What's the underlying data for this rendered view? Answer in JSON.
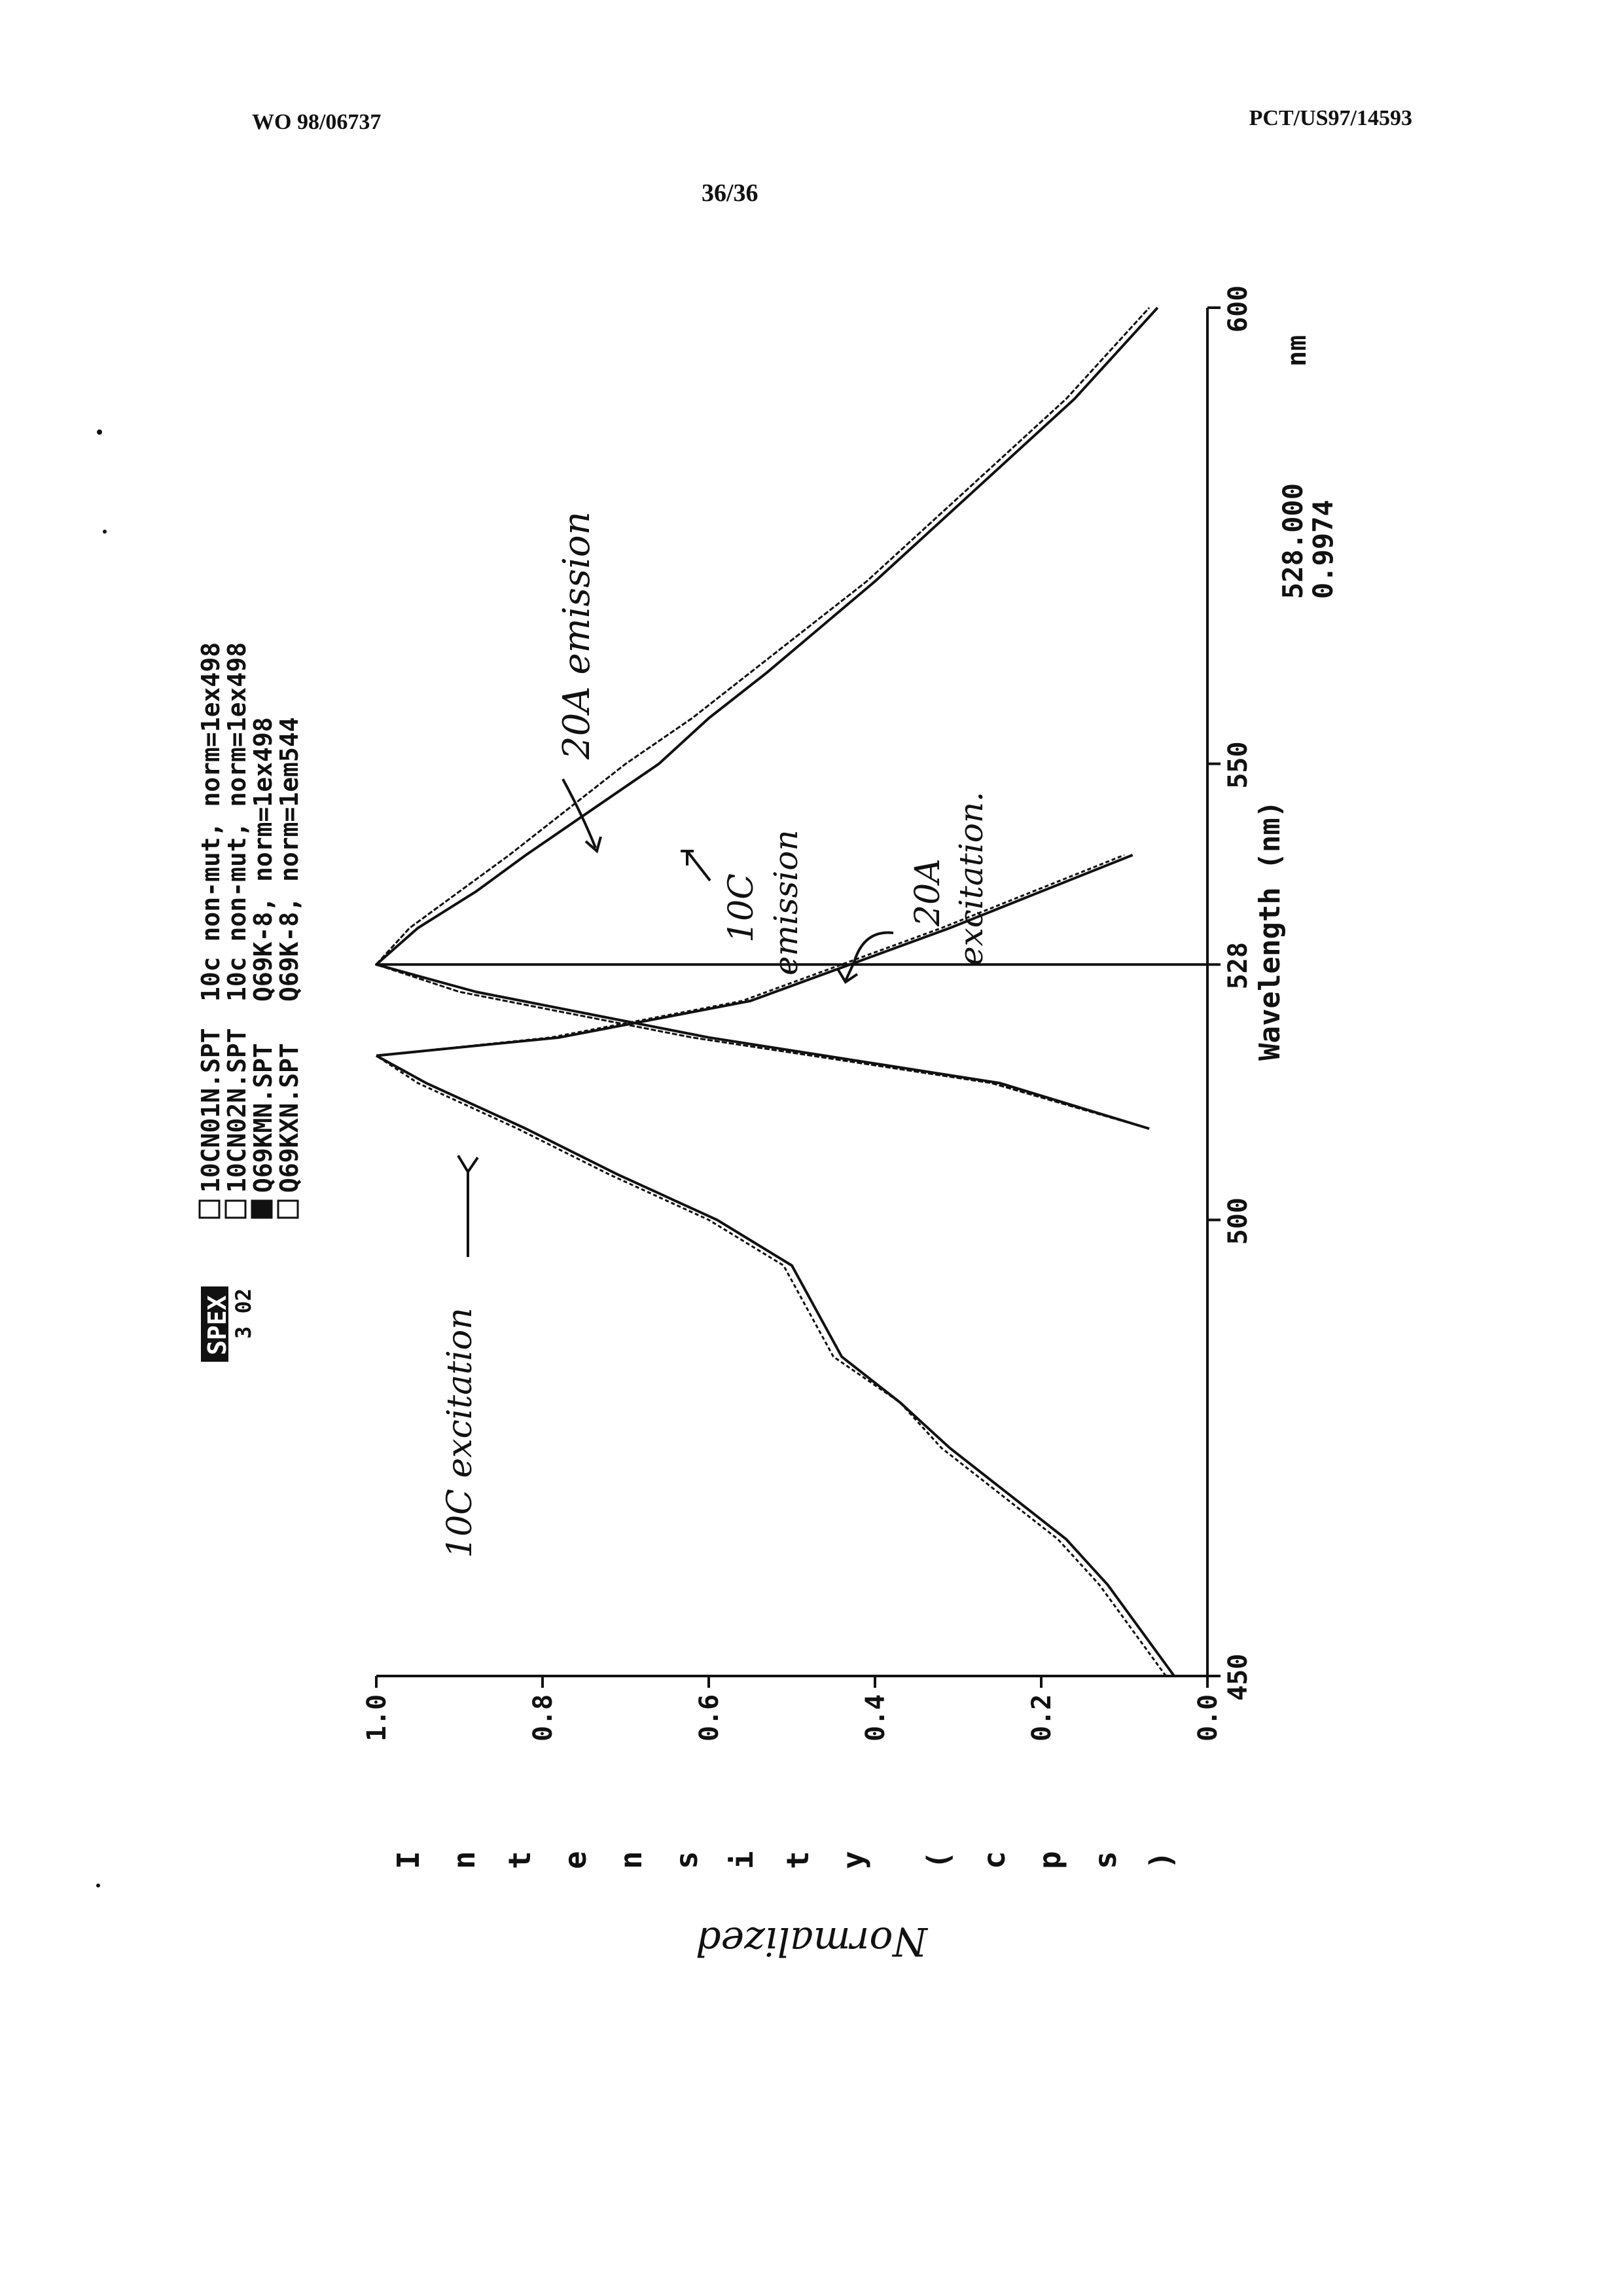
{
  "header": {
    "doc_number": "WO 98/06737",
    "app_number": "PCT/US97/14593",
    "page": "36/36"
  },
  "chart_data": {
    "type": "line",
    "orientation": "rotated 90° counter-clockwise",
    "brand": "SPEX",
    "brand_sub": "3 02",
    "xlabel": "Wavelength (nm)",
    "x_unit": "nm",
    "ylabel": "Intensity (cps)",
    "ylabel_handwritten": "Normalized",
    "xlim": [
      450,
      600
    ],
    "ylim": [
      0.0,
      1.0
    ],
    "x_ticks": [
      "450",
      "500",
      "528",
      "550",
      "600"
    ],
    "y_ticks": [
      "0.0",
      "0.2",
      "0.4",
      "0.6",
      "0.8",
      "1.0"
    ],
    "cursor": {
      "x": 528,
      "x_readout": "528.000",
      "y_readout": "0.9974"
    },
    "legend": [
      {
        "file": "10CN01N.SPT",
        "desc": "10c non-mut, norm=1ex498",
        "marker": "open"
      },
      {
        "file": "10CN02N.SPT",
        "desc": "10c non-mut, norm=1ex498",
        "marker": "open"
      },
      {
        "file": "Q69KMN.SPT",
        "desc": "Q69K-8, norm=1ex498",
        "marker": "filled"
      },
      {
        "file": "Q69KXN.SPT",
        "desc": "Q69K-8, norm=1em544",
        "marker": "open"
      }
    ],
    "annotations": [
      {
        "text": "10C excitation",
        "x": 514,
        "y": 0.92
      },
      {
        "text": "10C emission",
        "x": 542,
        "y": 0.78
      },
      {
        "text": "20A emission",
        "x": 543,
        "y": 0.86
      },
      {
        "text": "20A excitation",
        "x": 527,
        "y": 0.43
      }
    ],
    "series": [
      {
        "name": "10C excitation",
        "x": [
          450,
          455,
          460,
          465,
          470,
          475,
          480,
          485,
          490,
          495,
          500,
          505,
          510,
          515,
          518
        ],
        "y": [
          0.04,
          0.08,
          0.12,
          0.17,
          0.24,
          0.31,
          0.37,
          0.44,
          0.47,
          0.5,
          0.59,
          0.71,
          0.82,
          0.94,
          1.0
        ]
      },
      {
        "name": "10C excitation (2)",
        "x": [
          450,
          455,
          460,
          465,
          470,
          475,
          480,
          485,
          490,
          495,
          500,
          505,
          510,
          515,
          518
        ],
        "y": [
          0.05,
          0.09,
          0.13,
          0.18,
          0.25,
          0.32,
          0.37,
          0.45,
          0.48,
          0.51,
          0.6,
          0.72,
          0.83,
          0.95,
          1.0
        ]
      },
      {
        "name": "10C emission",
        "x": [
          510,
          515,
          520,
          525,
          528,
          532,
          536,
          540,
          545,
          550,
          555,
          560,
          570,
          580,
          590,
          600
        ],
        "y": [
          0.07,
          0.25,
          0.6,
          0.88,
          1.0,
          0.95,
          0.88,
          0.82,
          0.74,
          0.66,
          0.6,
          0.53,
          0.4,
          0.28,
          0.16,
          0.06
        ]
      },
      {
        "name": "20A emission",
        "x": [
          510,
          515,
          520,
          525,
          528,
          532,
          536,
          540,
          545,
          550,
          555,
          560,
          570,
          580,
          590,
          600
        ],
        "y": [
          0.07,
          0.26,
          0.62,
          0.9,
          1.0,
          0.96,
          0.9,
          0.84,
          0.77,
          0.7,
          0.62,
          0.55,
          0.41,
          0.29,
          0.17,
          0.07
        ]
      },
      {
        "name": "20A excitation",
        "x": [
          518,
          520,
          524,
          528,
          532,
          536,
          540
        ],
        "y": [
          1.0,
          0.78,
          0.55,
          0.43,
          0.31,
          0.2,
          0.09
        ]
      },
      {
        "name": "20A excitation (2)",
        "x": [
          518,
          520,
          524,
          528,
          532,
          536,
          540
        ],
        "y": [
          1.0,
          0.79,
          0.56,
          0.44,
          0.32,
          0.21,
          0.1
        ]
      }
    ]
  }
}
